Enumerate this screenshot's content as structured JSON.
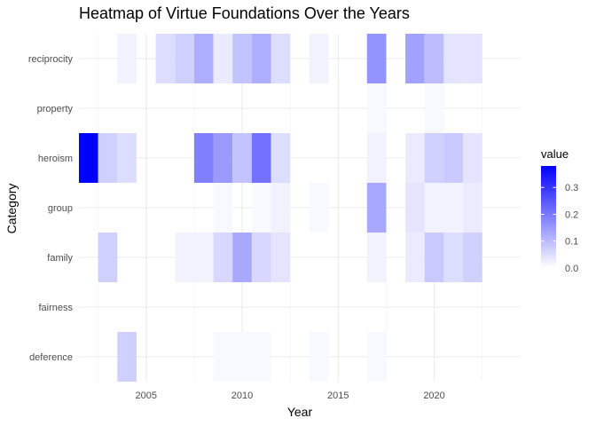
{
  "chart_data": {
    "type": "heatmap",
    "title": "Heatmap of Virtue Foundations Over the Years",
    "xlabel": "Year",
    "ylabel": "Category",
    "x_ticks": [
      2005,
      2010,
      2015,
      2020
    ],
    "xlim": [
      2001.5,
      2024.5
    ],
    "categories": [
      "deference",
      "fairness",
      "family",
      "group",
      "heroism",
      "property",
      "reciprocity"
    ],
    "legend_title": "value",
    "legend_ticks": [
      0.0,
      0.1,
      0.2,
      0.3
    ],
    "color_range": [
      0,
      0.38
    ],
    "color_low": "#ffffff",
    "color_high": "#0000ff",
    "grid": true,
    "legend_position": "right",
    "cells": [
      {
        "category": "reciprocity",
        "year": 2004,
        "value": 0.02
      },
      {
        "category": "reciprocity",
        "year": 2006,
        "value": 0.05
      },
      {
        "category": "reciprocity",
        "year": 2007,
        "value": 0.07
      },
      {
        "category": "reciprocity",
        "year": 2008,
        "value": 0.12
      },
      {
        "category": "reciprocity",
        "year": 2009,
        "value": 0.03
      },
      {
        "category": "reciprocity",
        "year": 2010,
        "value": 0.09
      },
      {
        "category": "reciprocity",
        "year": 2011,
        "value": 0.12
      },
      {
        "category": "reciprocity",
        "year": 2012,
        "value": 0.05
      },
      {
        "category": "reciprocity",
        "year": 2014,
        "value": 0.02
      },
      {
        "category": "reciprocity",
        "year": 2017,
        "value": 0.16
      },
      {
        "category": "reciprocity",
        "year": 2019,
        "value": 0.14
      },
      {
        "category": "reciprocity",
        "year": 2020,
        "value": 0.1
      },
      {
        "category": "reciprocity",
        "year": 2021,
        "value": 0.04
      },
      {
        "category": "reciprocity",
        "year": 2022,
        "value": 0.04
      },
      {
        "category": "property",
        "year": 2017,
        "value": 0.01
      },
      {
        "category": "property",
        "year": 2020,
        "value": 0.01
      },
      {
        "category": "heroism",
        "year": 2002,
        "value": 0.38
      },
      {
        "category": "heroism",
        "year": 2003,
        "value": 0.07
      },
      {
        "category": "heroism",
        "year": 2004,
        "value": 0.05
      },
      {
        "category": "heroism",
        "year": 2008,
        "value": 0.19
      },
      {
        "category": "heroism",
        "year": 2009,
        "value": 0.15
      },
      {
        "category": "heroism",
        "year": 2010,
        "value": 0.09
      },
      {
        "category": "heroism",
        "year": 2011,
        "value": 0.21
      },
      {
        "category": "heroism",
        "year": 2012,
        "value": 0.05
      },
      {
        "category": "heroism",
        "year": 2017,
        "value": 0.02
      },
      {
        "category": "heroism",
        "year": 2019,
        "value": 0.03
      },
      {
        "category": "heroism",
        "year": 2020,
        "value": 0.07
      },
      {
        "category": "heroism",
        "year": 2021,
        "value": 0.08
      },
      {
        "category": "heroism",
        "year": 2022,
        "value": 0.04
      },
      {
        "category": "group",
        "year": 2009,
        "value": 0.01
      },
      {
        "category": "group",
        "year": 2011,
        "value": 0.01
      },
      {
        "category": "group",
        "year": 2012,
        "value": 0.02
      },
      {
        "category": "group",
        "year": 2014,
        "value": 0.01
      },
      {
        "category": "group",
        "year": 2017,
        "value": 0.13
      },
      {
        "category": "group",
        "year": 2019,
        "value": 0.04
      },
      {
        "category": "group",
        "year": 2020,
        "value": 0.02
      },
      {
        "category": "group",
        "year": 2021,
        "value": 0.02
      },
      {
        "category": "group",
        "year": 2022,
        "value": 0.03
      },
      {
        "category": "family",
        "year": 2003,
        "value": 0.07
      },
      {
        "category": "family",
        "year": 2007,
        "value": 0.02
      },
      {
        "category": "family",
        "year": 2008,
        "value": 0.02
      },
      {
        "category": "family",
        "year": 2009,
        "value": 0.06
      },
      {
        "category": "family",
        "year": 2010,
        "value": 0.13
      },
      {
        "category": "family",
        "year": 2011,
        "value": 0.06
      },
      {
        "category": "family",
        "year": 2012,
        "value": 0.04
      },
      {
        "category": "family",
        "year": 2017,
        "value": 0.02
      },
      {
        "category": "family",
        "year": 2019,
        "value": 0.03
      },
      {
        "category": "family",
        "year": 2020,
        "value": 0.08
      },
      {
        "category": "family",
        "year": 2021,
        "value": 0.05
      },
      {
        "category": "family",
        "year": 2022,
        "value": 0.07
      },
      {
        "category": "deference",
        "year": 2004,
        "value": 0.07
      },
      {
        "category": "deference",
        "year": 2009,
        "value": 0.01
      },
      {
        "category": "deference",
        "year": 2010,
        "value": 0.01
      },
      {
        "category": "deference",
        "year": 2011,
        "value": 0.01
      },
      {
        "category": "deference",
        "year": 2014,
        "value": 0.01
      },
      {
        "category": "deference",
        "year": 2017,
        "value": 0.01
      }
    ]
  }
}
